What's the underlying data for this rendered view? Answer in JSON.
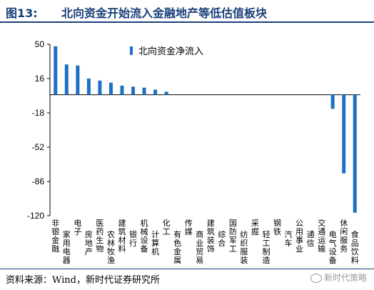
{
  "header": {
    "figure_label": "图13:",
    "title": "北向资金开始流入金融地产等低估值板块"
  },
  "source": "资料来源：Wind，新时代证券研究所",
  "watermark": "新时代策略",
  "colors": {
    "bar": "#1f6fc5",
    "title": "#1a3f7a",
    "axis": "#000000"
  },
  "chart_data": {
    "type": "bar",
    "title": "",
    "xlabel": "",
    "ylabel": "",
    "ylim": [
      -120,
      50
    ],
    "yticks": [
      50,
      16,
      -18,
      -52,
      -86,
      -120
    ],
    "legend": {
      "position": "top-center"
    },
    "grid": false,
    "categories": [
      "非银金融",
      "家用电器",
      "电子",
      "房地产",
      "医药生物",
      "农林牧渔",
      "建筑材料",
      "银行",
      "机械设备",
      "计算机",
      "化工",
      "有色金属",
      "传媒",
      "商业贸易",
      "建筑装饰",
      "综合",
      "国防军工",
      "纺织服装",
      "采掘",
      "轻工制造",
      "钢铁",
      "汽车",
      "公用事业",
      "通信",
      "交通运输",
      "电气设备",
      "休闲服务",
      "食品饮料"
    ],
    "series": [
      {
        "name": "北向资金净流入",
        "values": [
          48,
          30,
          29,
          16,
          14,
          12,
          9,
          8,
          7,
          5,
          3,
          0,
          0,
          0,
          0,
          0,
          0,
          0,
          0,
          0,
          0,
          0,
          0,
          0,
          0,
          -14,
          -78,
          -117
        ]
      }
    ]
  }
}
